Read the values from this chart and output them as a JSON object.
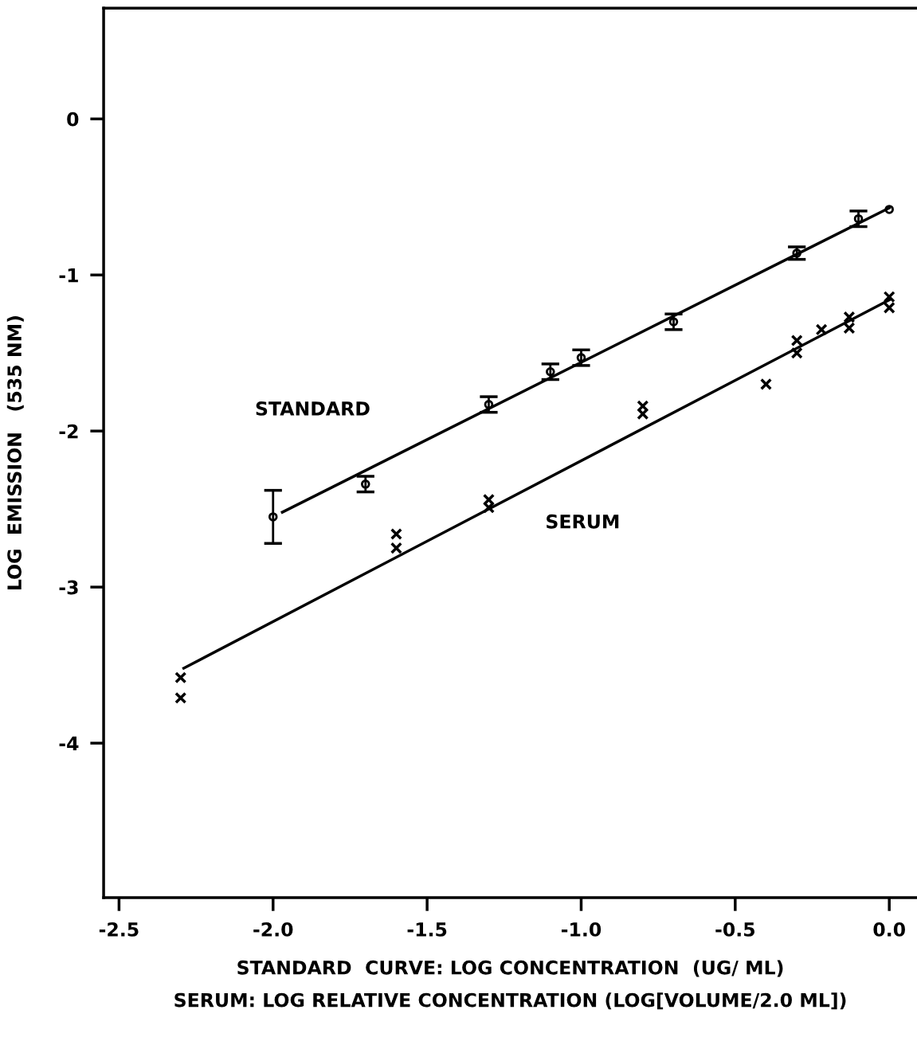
{
  "chart_data": {
    "type": "scatter",
    "xlabel": "STANDARD  CURVE: LOG CONCENTRATION  (UG/ ML)\nSERUM: LOG RELATIVE CONCENTRATION (LOG[VOLUME/2.0 ML])",
    "ylabel": "LOG  EMISSION   (535 NM)",
    "xlim": [
      -2.55,
      0.09
    ],
    "ylim": [
      -4.99,
      0.71
    ],
    "xticks": [
      -2.5,
      {
        "value": -2.0,
        "label": "-2.0"
      },
      -1.5,
      {
        "value": -1.0,
        "label": "-1.0"
      },
      -0.5,
      {
        "value": 0.0,
        "label": "0.0"
      }
    ],
    "yticks": [
      0,
      -1,
      -2,
      -3,
      -4
    ],
    "grid": false,
    "legend": false,
    "series": [
      {
        "marker": "circle",
        "color": "#000000",
        "x": [
          -2.0,
          -1.7,
          -1.3,
          -1.1,
          -1.0,
          -0.7,
          -0.3,
          -0.1,
          0.0
        ],
        "values": [
          -2.55,
          -2.34,
          -1.83,
          -1.62,
          -1.53,
          -1.3,
          -0.86,
          -0.64,
          -0.58
        ],
        "errors": [
          0.17,
          0.05,
          0.05,
          0.05,
          0.05,
          0.05,
          0.04,
          0.05,
          null
        ]
      },
      {
        "marker": "cross",
        "color": "#000000",
        "x": [
          -2.3,
          -2.3,
          -1.6,
          -1.6,
          -1.3,
          -1.3,
          -0.8,
          -0.8,
          -0.4,
          -0.3,
          -0.3,
          -0.22,
          -0.13,
          -0.13,
          0.0,
          0.0
        ],
        "values": [
          -3.58,
          -3.71,
          -2.66,
          -2.75,
          -2.44,
          -2.49,
          -1.84,
          -1.89,
          -1.7,
          -1.42,
          -1.5,
          -1.35,
          -1.27,
          -1.34,
          -1.14,
          -1.21
        ]
      },
      {
        "type": "line",
        "marker": "none",
        "color": "#000000",
        "x": [
          -1.97,
          0.0
        ],
        "values": [
          -2.52,
          -0.57
        ]
      },
      {
        "type": "line",
        "marker": "none",
        "color": "#000000",
        "x": [
          -2.29,
          0.0
        ],
        "values": [
          -3.52,
          -1.16
        ]
      }
    ],
    "annotations": [
      "STANDARD",
      "SERUM"
    ]
  }
}
